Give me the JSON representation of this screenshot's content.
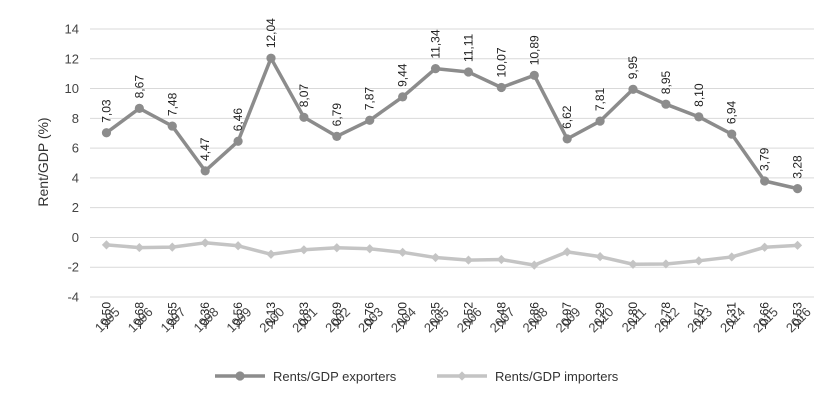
{
  "chart_data": {
    "type": "line",
    "title": "",
    "xlabel": "",
    "ylabel": "Rent/GDP (%)",
    "ylim": [
      -4,
      14
    ],
    "yticks": [
      "14",
      "12",
      "10",
      "8",
      "6",
      "4",
      "2",
      "0",
      "-2",
      "-4"
    ],
    "grid": true,
    "legend_position": "bottom",
    "categories": [
      "1995",
      "1996",
      "1997",
      "1998",
      "1999",
      "2000",
      "2001",
      "2002",
      "2003",
      "2004",
      "2005",
      "2006",
      "2007",
      "2008",
      "2009",
      "2010",
      "2011",
      "2012",
      "2013",
      "2014",
      "2015",
      "2016"
    ],
    "series": [
      {
        "name": "Rents/GDP exporters",
        "color": "#8c8c8c",
        "marker": "circle",
        "values": [
          7.03,
          8.67,
          7.48,
          4.47,
          6.46,
          12.04,
          8.07,
          6.79,
          7.87,
          9.44,
          11.34,
          11.11,
          10.07,
          10.89,
          6.62,
          7.81,
          9.95,
          8.95,
          8.1,
          6.94,
          3.79,
          3.28
        ],
        "labels": [
          "7,03",
          "8,67",
          "7,48",
          "4,47",
          "6,46",
          "12,04",
          "8,07",
          "6,79",
          "7,87",
          "9,44",
          "11,34",
          "11,11",
          "10,07",
          "10,89",
          "6,62",
          "7,81",
          "9,95",
          "8,95",
          "8,10",
          "6,94",
          "3,79",
          "3,28"
        ]
      },
      {
        "name": "Rents/GDP importers",
        "color": "#c4c4c4",
        "marker": "diamond",
        "values": [
          -0.5,
          -0.68,
          -0.65,
          -0.36,
          -0.56,
          -1.13,
          -0.83,
          -0.69,
          -0.76,
          -1.0,
          -1.35,
          -1.52,
          -1.48,
          -1.86,
          -0.97,
          -1.29,
          -1.8,
          -1.78,
          -1.57,
          -1.31,
          -0.66,
          -0.53
        ],
        "labels": [
          "-0,50",
          "-0,68",
          "-0,65",
          "-0,36",
          "-0,56",
          "-1,13",
          "-0,83",
          "-0,69",
          "-0,76",
          "-1,00",
          "-1,35",
          "-1,52",
          "-1,48",
          "-1,86",
          "-0,97",
          "-1,29",
          "-1,80",
          "-1,78",
          "-1,57",
          "-1,31",
          "-0,66",
          "-0,53"
        ]
      }
    ]
  }
}
